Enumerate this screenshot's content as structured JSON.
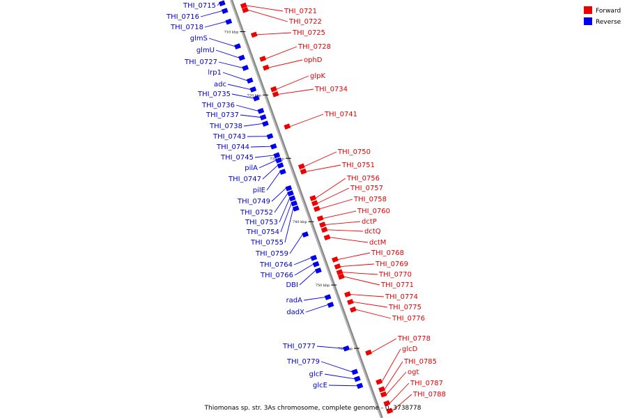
{
  "caption": "Thiomonas sp. str. 3As chromosome, complete genome - 0..3738778",
  "legend": {
    "forward_label": "Forward",
    "reverse_label": "Reverse",
    "forward_color": "#ee0000",
    "reverse_color": "#0000ee"
  },
  "ticks": [
    "710 kbp",
    "720 kbp",
    "730 kbp",
    "740 kbp",
    "750 kbp",
    "760 kbp"
  ],
  "reverse_genes": [
    {
      "label": "THI_0715",
      "kb": 705.0
    },
    {
      "label": "THI_0716",
      "kb": 706.2
    },
    {
      "label": "THI_0718",
      "kb": 707.9
    },
    {
      "label": "glmS",
      "kb": 711.8
    },
    {
      "label": "glmU",
      "kb": 713.6
    },
    {
      "label": "THI_0727",
      "kb": 715.2
    },
    {
      "label": "lrp1",
      "kb": 717.2
    },
    {
      "label": "adc",
      "kb": 718.6
    },
    {
      "label": "THI_0735",
      "kb": 720.0
    },
    {
      "label": "THI_0736",
      "kb": 722.0
    },
    {
      "label": "THI_0737",
      "kb": 723.0
    },
    {
      "label": "THI_0738",
      "kb": 724.0
    },
    {
      "label": "THI_0743",
      "kb": 726.0
    },
    {
      "label": "THI_0744",
      "kb": 727.6
    },
    {
      "label": "THI_0745",
      "kb": 729.0
    },
    {
      "label": "pilA",
      "kb": 729.8
    },
    {
      "label": "THI_0747",
      "kb": 730.6
    },
    {
      "label": "pilE",
      "kb": 731.6
    },
    {
      "label": "THI_0749",
      "kb": 734.2
    },
    {
      "label": "THI_0752",
      "kb": 735.0
    },
    {
      "label": "THI_0753",
      "kb": 735.8
    },
    {
      "label": "THI_0754",
      "kb": 736.6
    },
    {
      "label": "THI_0755",
      "kb": 737.4
    },
    {
      "label": "THI_0759",
      "kb": 741.5
    },
    {
      "label": "THI_0764",
      "kb": 745.2
    },
    {
      "label": "THI_0766",
      "kb": 746.2
    },
    {
      "label": "DBI",
      "kb": 747.2
    },
    {
      "label": "radA",
      "kb": 751.4
    },
    {
      "label": "dadX",
      "kb": 752.6
    },
    {
      "label": "THI_0777",
      "kb": 759.5
    },
    {
      "label": "THI_0779",
      "kb": 763.2
    },
    {
      "label": "glcF",
      "kb": 764.3
    },
    {
      "label": "glcE",
      "kb": 765.4
    }
  ],
  "forward_genes": [
    {
      "label": "THI_0721",
      "kb": 706.4
    },
    {
      "label": "THI_0722",
      "kb": 707.1
    },
    {
      "label": "THI_0725",
      "kb": 711.0
    },
    {
      "label": "THI_0728",
      "kb": 714.8
    },
    {
      "label": "ophD",
      "kb": 716.2
    },
    {
      "label": "glpK",
      "kb": 719.6
    },
    {
      "label": "THI_0734",
      "kb": 720.4
    },
    {
      "label": "THI_0741",
      "kb": 725.5
    },
    {
      "label": "THI_0750",
      "kb": 731.8
    },
    {
      "label": "THI_0751",
      "kb": 732.6
    },
    {
      "label": "THI_0756",
      "kb": 736.8
    },
    {
      "label": "THI_0757",
      "kb": 737.6
    },
    {
      "label": "THI_0758",
      "kb": 738.5
    },
    {
      "label": "THI_0760",
      "kb": 740.0
    },
    {
      "label": "dctP",
      "kb": 741.0
    },
    {
      "label": "dctQ",
      "kb": 741.8
    },
    {
      "label": "dctM",
      "kb": 743.0
    },
    {
      "label": "THI_0768",
      "kb": 746.5
    },
    {
      "label": "THI_0769",
      "kb": 747.6
    },
    {
      "label": "THI_0770",
      "kb": 748.5
    },
    {
      "label": "THI_0771",
      "kb": 749.2
    },
    {
      "label": "THI_0774",
      "kb": 752.0
    },
    {
      "label": "THI_0775",
      "kb": 753.2
    },
    {
      "label": "THI_0776",
      "kb": 754.4
    },
    {
      "label": "THI_0778",
      "kb": 761.2
    },
    {
      "label": "glcD",
      "kb": 765.8
    },
    {
      "label": "THI_0785",
      "kb": 767.0
    },
    {
      "label": "ogt",
      "kb": 767.8
    },
    {
      "label": "THI_0787",
      "kb": 769.2
    },
    {
      "label": "THI_0788",
      "kb": 770.4
    }
  ]
}
